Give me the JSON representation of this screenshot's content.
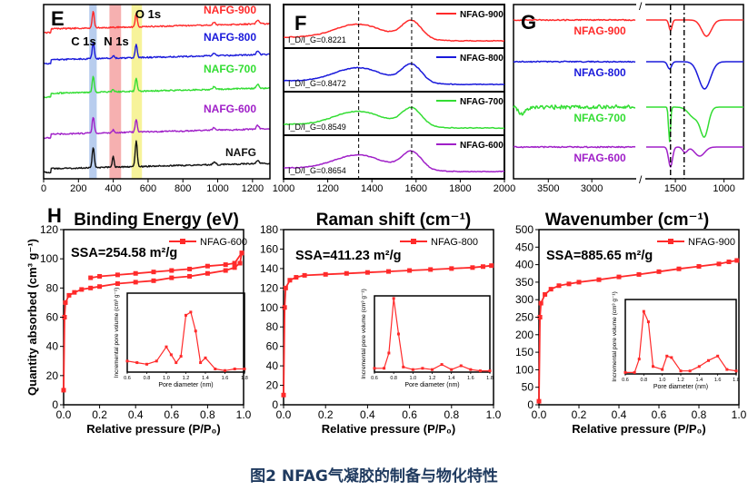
{
  "caption": "图2 NFAG气凝胶的制备与物化特性",
  "colors": {
    "red": "#ff2a2a",
    "blue": "#1a1adb",
    "green": "#33dd33",
    "purple": "#a020c8",
    "black": "#111111"
  },
  "chart_data": [
    {
      "panel": "E",
      "type": "line",
      "xlabel": "Binding Energy (eV)",
      "xlim": [
        0,
        1300
      ],
      "x_ticks": [
        0,
        200,
        400,
        600,
        800,
        1000,
        1200
      ],
      "series": [
        "NAFG-900",
        "NAFG-800",
        "NAFG-700",
        "NAFG-600",
        "NAFG"
      ],
      "peak_labels": [
        {
          "text": "C 1s",
          "x": 285
        },
        {
          "text": "N 1s",
          "x": 400
        },
        {
          "text": "O 1s",
          "x": 532
        }
      ]
    },
    {
      "panel": "F",
      "type": "line",
      "xlabel": "Raman shift (cm⁻¹)",
      "xlim": [
        1000,
        2000
      ],
      "x_ticks": [
        1000,
        1200,
        1400,
        1600,
        1800,
        2000
      ],
      "reference_lines": [
        1340,
        1580
      ],
      "series": [
        {
          "name": "NFAG-900",
          "ratio": "I_D/I_G=0.8221"
        },
        {
          "name": "NFAG-800",
          "ratio": "I_D/I_G=0.8472"
        },
        {
          "name": "NFAG-700",
          "ratio": "I_D/I_G=0.8549"
        },
        {
          "name": "NFAG-600",
          "ratio": "I_D/I_G=0.8654"
        }
      ]
    },
    {
      "panel": "G",
      "type": "line",
      "xlabel": "Wavenumber (cm⁻¹)",
      "x_ticks": [
        "3500",
        "3000",
        "1500",
        "1000"
      ],
      "series": [
        "NFAG-900",
        "NFAG-800",
        "NFAG-700",
        "NFAG-600"
      ]
    },
    {
      "panel": "H",
      "type": "line",
      "title": "SSA=254.58 m²/g",
      "legend": "NFAG-600",
      "xlabel": "Relative pressure (P/P₀)",
      "ylabel": "Quantity absorbed (cm³ g⁻¹)",
      "xlim": [
        0,
        1
      ],
      "ylim": [
        0,
        120
      ],
      "x_ticks": [
        "0.0",
        "0.2",
        "0.4",
        "0.6",
        "0.8",
        "1.0"
      ],
      "y_ticks": [
        "0",
        "20",
        "40",
        "60",
        "80",
        "100",
        "120"
      ],
      "x": [
        0.0,
        0.005,
        0.01,
        0.03,
        0.06,
        0.1,
        0.15,
        0.2,
        0.3,
        0.4,
        0.5,
        0.6,
        0.7,
        0.8,
        0.9,
        0.95,
        0.98,
        0.99
      ],
      "y": [
        10,
        60,
        70,
        75,
        77,
        79,
        80,
        81,
        83,
        84,
        85,
        87,
        88,
        90,
        92,
        94,
        97,
        104
      ],
      "desorption_x": [
        0.99,
        0.95,
        0.9,
        0.8,
        0.7,
        0.6,
        0.5,
        0.4,
        0.3,
        0.2,
        0.15
      ],
      "desorption_y": [
        104,
        97,
        96,
        95,
        93,
        92,
        91,
        90,
        89,
        88,
        87
      ],
      "inset": {
        "xlabel": "Pore diameter (nm)",
        "ylabel": "Incremental pore volume (cm³ g⁻¹)",
        "xlim": [
          0.6,
          1.8
        ],
        "ylim": [
          0,
          2.5
        ],
        "x": [
          0.6,
          0.7,
          0.8,
          0.9,
          1.0,
          1.05,
          1.1,
          1.15,
          1.2,
          1.25,
          1.3,
          1.35,
          1.4,
          1.5,
          1.6,
          1.7,
          1.8
        ],
        "y": [
          0.35,
          0.3,
          0.25,
          0.35,
          0.8,
          0.55,
          0.3,
          0.5,
          1.8,
          1.9,
          1.3,
          0.3,
          0.45,
          0.1,
          0.05,
          0.1,
          0.1
        ]
      }
    },
    {
      "panel": "H2",
      "type": "line",
      "title": "SSA=411.23 m²/g",
      "legend": "NFAG-800",
      "xlabel": "Relative pressure (P/P₀)",
      "xlim": [
        0,
        1
      ],
      "ylim": [
        0,
        180
      ],
      "x_ticks": [
        "0.0",
        "0.2",
        "0.4",
        "0.6",
        "0.8",
        "1.0"
      ],
      "y_ticks": [
        "0",
        "20",
        "40",
        "60",
        "80",
        "100",
        "120",
        "140",
        "160",
        "180"
      ],
      "x": [
        0.0,
        0.005,
        0.01,
        0.03,
        0.06,
        0.1,
        0.2,
        0.3,
        0.4,
        0.5,
        0.6,
        0.7,
        0.8,
        0.9,
        0.95,
        0.99
      ],
      "y": [
        10,
        100,
        120,
        128,
        131,
        133,
        134,
        135,
        136,
        137,
        138,
        139,
        140,
        141,
        142,
        143
      ],
      "inset": {
        "xlabel": "Pore diameter (nm)",
        "ylabel": "Incremental pore volume (cm³ g⁻¹)",
        "xlim": [
          0.6,
          1.8
        ],
        "ylim": [
          0,
          6
        ],
        "x": [
          0.6,
          0.7,
          0.75,
          0.8,
          0.85,
          0.9,
          1.0,
          1.1,
          1.2,
          1.3,
          1.4,
          1.5,
          1.6,
          1.7,
          1.8
        ],
        "y": [
          0.3,
          0.3,
          1.5,
          5.8,
          3.0,
          0.4,
          0.2,
          0.3,
          0.2,
          0.6,
          0.2,
          0.5,
          0.2,
          0.1,
          0.1
        ]
      }
    },
    {
      "panel": "H3",
      "type": "line",
      "title": "SSA=885.65 m²/g",
      "legend": "NFAG-900",
      "xlabel": "Relative pressure (P/P₀)",
      "xlim": [
        0,
        1
      ],
      "ylim": [
        0,
        500
      ],
      "x_ticks": [
        "0.0",
        "0.2",
        "0.4",
        "0.6",
        "0.8",
        "1.0"
      ],
      "y_ticks": [
        "0",
        "50",
        "100",
        "150",
        "200",
        "250",
        "300",
        "350",
        "400",
        "450",
        "500"
      ],
      "x": [
        0.0,
        0.005,
        0.01,
        0.03,
        0.06,
        0.1,
        0.15,
        0.2,
        0.3,
        0.4,
        0.5,
        0.6,
        0.7,
        0.8,
        0.9,
        0.95,
        0.99
      ],
      "y": [
        10,
        250,
        290,
        315,
        330,
        340,
        345,
        350,
        357,
        365,
        372,
        380,
        388,
        395,
        402,
        408,
        412
      ],
      "inset": {
        "xlabel": "Pore diameter (nm)",
        "ylabel": "Incremental pore volume (cm³ g⁻¹)",
        "xlim": [
          0.6,
          1.8
        ],
        "ylim": [
          0,
          5
        ],
        "x": [
          0.6,
          0.7,
          0.75,
          0.8,
          0.85,
          0.9,
          1.0,
          1.05,
          1.1,
          1.2,
          1.3,
          1.4,
          1.5,
          1.6,
          1.7,
          1.8
        ],
        "y": [
          0.1,
          0.1,
          1.0,
          4.2,
          3.5,
          0.5,
          0.3,
          1.2,
          1.1,
          0.2,
          0.2,
          0.5,
          0.9,
          1.2,
          0.3,
          0.2
        ]
      }
    }
  ]
}
